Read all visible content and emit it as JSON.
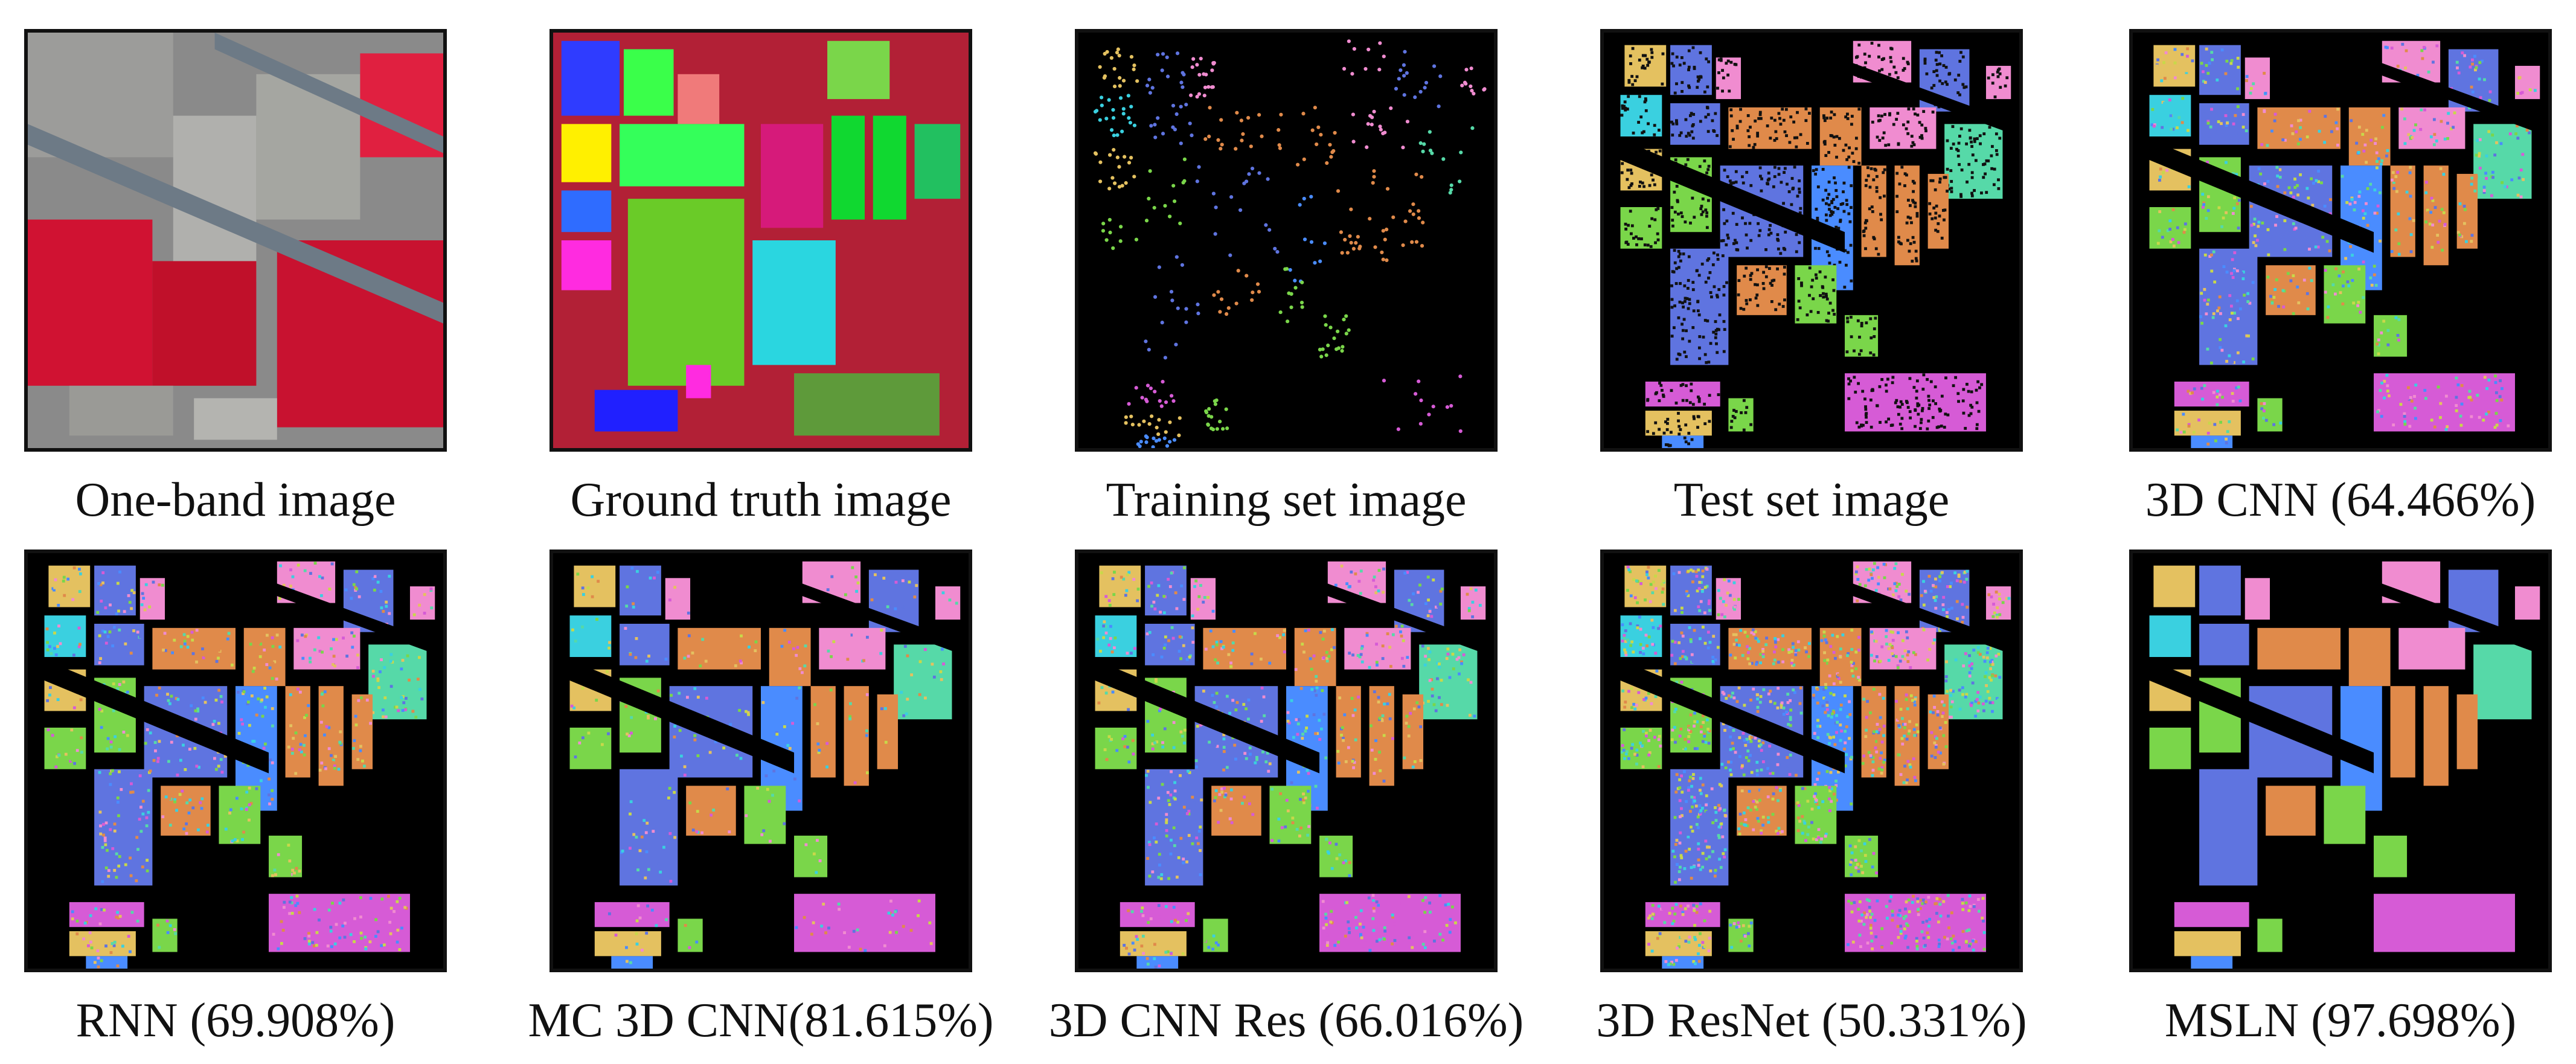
{
  "figure": {
    "panels": [
      {
        "caption": "One-band image",
        "style": "false-color"
      },
      {
        "caption": "Ground truth image",
        "style": "ground-truth"
      },
      {
        "caption": "Training set image",
        "style": "sparse-samples"
      },
      {
        "caption": "Test set image",
        "style": "dotted-labels"
      },
      {
        "caption": "3D CNN (64.466%)",
        "style": "noisy-classification"
      },
      {
        "caption": "RNN (69.908%)",
        "style": "noisy-classification"
      },
      {
        "caption": "MC 3D CNN(81.615%)",
        "style": "noisy-classification"
      },
      {
        "caption": "3D CNN Res (66.016%)",
        "style": "noisy-classification"
      },
      {
        "caption": "3D ResNet (50.331%)",
        "style": "noisy-classification"
      },
      {
        "caption": "MSLN (97.698%)",
        "style": "clean-classification"
      }
    ],
    "palette": {
      "background": "#000000",
      "class_colors": [
        "#e4c160",
        "#5f74e0",
        "#f08cd0",
        "#4a8cff",
        "#e08a4a",
        "#56d9a8",
        "#7ad64a",
        "#d65bd6",
        "#3ad0e0",
        "#c8d84a"
      ]
    }
  }
}
